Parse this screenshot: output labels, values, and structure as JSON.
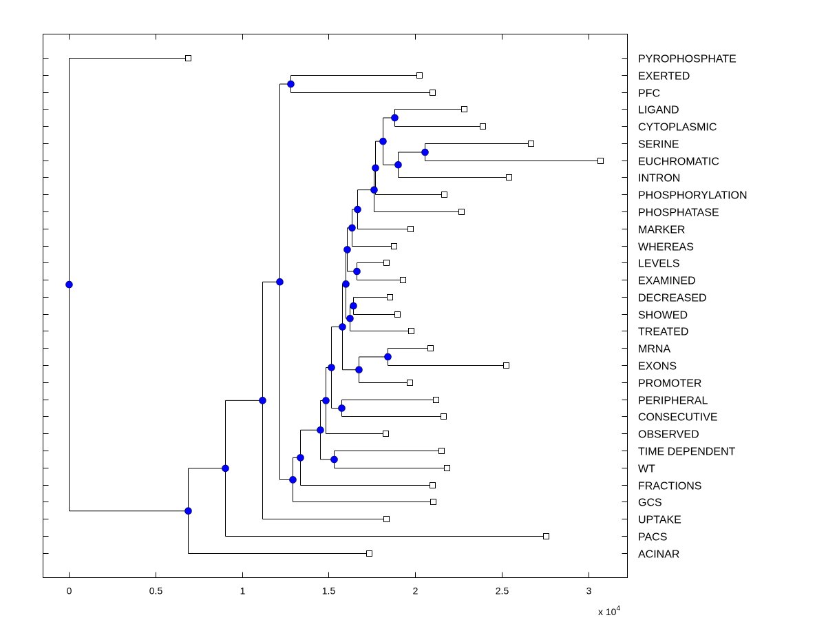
{
  "chart_data": {
    "type": "dendrogram",
    "title": "",
    "xlabel": "",
    "ylabel": "",
    "x_exponent_label": "x 10",
    "x_exponent": "4",
    "xlim": [
      -0.15,
      3.22
    ],
    "x_ticks": [
      0,
      0.5,
      1,
      1.5,
      2,
      2.5,
      3
    ],
    "x_tick_labels": [
      "0",
      "0.5",
      "1",
      "1.5",
      "2",
      "2.5",
      "3"
    ],
    "grid": false,
    "colors": {
      "internal_node": "#0000ff",
      "line": "#000000",
      "leaf_fill": "#ffffff"
    },
    "leaves": [
      {
        "id": "PYROPHOSPHATE",
        "x": 0.688
      },
      {
        "id": "EXERTED",
        "x": 2.024
      },
      {
        "id": "PFC",
        "x": 2.099
      },
      {
        "id": "LIGAND",
        "x": 2.282
      },
      {
        "id": "CYTOPLASMIC",
        "x": 2.39
      },
      {
        "id": "SERINE",
        "x": 2.668
      },
      {
        "id": "EUCHROMATIC",
        "x": 3.07
      },
      {
        "id": "INTRON",
        "x": 2.541
      },
      {
        "id": "PHOSPHORYLATION",
        "x": 2.167
      },
      {
        "id": "PHOSPHATASE",
        "x": 2.266
      },
      {
        "id": "MARKER",
        "x": 1.972
      },
      {
        "id": "WHEREAS",
        "x": 1.877
      },
      {
        "id": "LEVELS",
        "x": 1.833
      },
      {
        "id": "EXAMINED",
        "x": 1.928
      },
      {
        "id": "DECREASED",
        "x": 1.853
      },
      {
        "id": "SHOWED",
        "x": 1.897
      },
      {
        "id": "TREATED",
        "x": 1.976
      },
      {
        "id": "MRNA",
        "x": 2.087
      },
      {
        "id": "EXONS",
        "x": 2.525
      },
      {
        "id": "PROMOTER",
        "x": 1.968
      },
      {
        "id": "PERIPHERAL",
        "x": 2.119
      },
      {
        "id": "CONSECUTIVE",
        "x": 2.163
      },
      {
        "id": "OBSERVED",
        "x": 1.829
      },
      {
        "id": "TIME DEPENDENT",
        "x": 2.151
      },
      {
        "id": "WT",
        "x": 2.183
      },
      {
        "id": "FRACTIONS",
        "x": 2.099
      },
      {
        "id": "GCS",
        "x": 2.103
      },
      {
        "id": "UPTAKE",
        "x": 1.833
      },
      {
        "id": "PACS",
        "x": 2.755
      },
      {
        "id": "ACINAR",
        "x": 1.734
      }
    ],
    "internal_nodes": [
      {
        "id": "n_root",
        "x": 0.0,
        "children": [
          "PYROPHOSPHATE",
          "n1"
        ]
      },
      {
        "id": "n1",
        "x": 0.688,
        "children": [
          "n2",
          "ACINAR"
        ]
      },
      {
        "id": "n2",
        "x": 0.903,
        "children": [
          "n3",
          "PACS"
        ]
      },
      {
        "id": "n3",
        "x": 1.117,
        "children": [
          "n4",
          "UPTAKE"
        ]
      },
      {
        "id": "n4",
        "x": 1.217,
        "children": [
          "n5",
          "n6"
        ]
      },
      {
        "id": "n5",
        "x": 1.28,
        "children": [
          "EXERTED",
          "PFC"
        ]
      },
      {
        "id": "n6",
        "x": 1.292,
        "children": [
          "n7",
          "GCS"
        ]
      },
      {
        "id": "n7",
        "x": 1.336,
        "children": [
          "n8",
          "FRACTIONS"
        ]
      },
      {
        "id": "n8",
        "x": 1.451,
        "children": [
          "n9",
          "n10"
        ]
      },
      {
        "id": "n10",
        "x": 1.531,
        "children": [
          "TIME DEPENDENT",
          "WT"
        ]
      },
      {
        "id": "n9",
        "x": 1.483,
        "children": [
          "n11",
          "OBSERVED"
        ]
      },
      {
        "id": "n11",
        "x": 1.515,
        "children": [
          "n12",
          "n13"
        ]
      },
      {
        "id": "n13",
        "x": 1.575,
        "children": [
          "PERIPHERAL",
          "CONSECUTIVE"
        ]
      },
      {
        "id": "n12",
        "x": 1.579,
        "children": [
          "n14",
          "n15"
        ]
      },
      {
        "id": "n15",
        "x": 1.674,
        "children": [
          "n16",
          "PROMOTER"
        ]
      },
      {
        "id": "n16",
        "x": 1.841,
        "children": [
          "MRNA",
          "EXONS"
        ]
      },
      {
        "id": "n14",
        "x": 1.598,
        "children": [
          "n17",
          "n18"
        ]
      },
      {
        "id": "n18",
        "x": 1.622,
        "children": [
          "n19",
          "TREATED"
        ]
      },
      {
        "id": "n19",
        "x": 1.642,
        "children": [
          "DECREASED",
          "SHOWED"
        ]
      },
      {
        "id": "n17",
        "x": 1.606,
        "children": [
          "n20",
          "n21"
        ]
      },
      {
        "id": "n21",
        "x": 1.662,
        "children": [
          "LEVELS",
          "EXAMINED"
        ]
      },
      {
        "id": "n20",
        "x": 1.634,
        "children": [
          "n22",
          "WHEREAS"
        ]
      },
      {
        "id": "n22",
        "x": 1.666,
        "children": [
          "n23",
          "MARKER"
        ]
      },
      {
        "id": "n23",
        "x": 1.761,
        "children": [
          "n24",
          "PHOSPHATASE"
        ]
      },
      {
        "id": "n24",
        "x": 1.769,
        "children": [
          "n25",
          "PHOSPHORYLATION"
        ]
      },
      {
        "id": "n25",
        "x": 1.813,
        "children": [
          "n26",
          "n27"
        ]
      },
      {
        "id": "n26",
        "x": 1.881,
        "children": [
          "LIGAND",
          "CYTOPLASMIC"
        ]
      },
      {
        "id": "n27",
        "x": 1.901,
        "children": [
          "n28",
          "INTRON"
        ]
      },
      {
        "id": "n28",
        "x": 2.056,
        "children": [
          "SERINE",
          "EUCHROMATIC"
        ]
      }
    ]
  }
}
